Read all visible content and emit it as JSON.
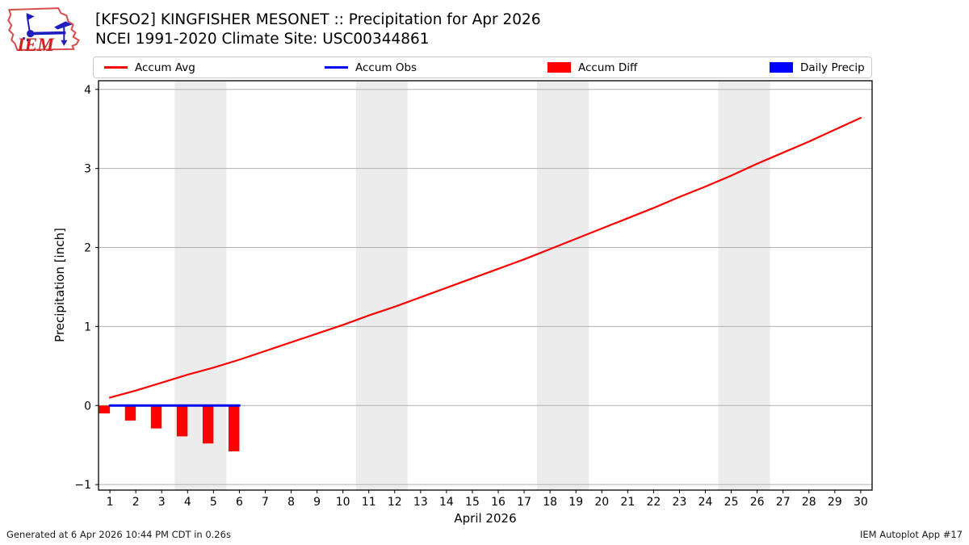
{
  "header": {
    "logo_text": "IEM",
    "title_line1": "[KFSO2] KINGFISHER MESONET :: Precipitation for Apr 2026",
    "title_line2": "NCEI 1991-2020 Climate Site: USC00344861"
  },
  "legend": {
    "items": [
      {
        "label": "Accum Avg",
        "swatch": "line",
        "color": "#ff0000"
      },
      {
        "label": "Accum Obs",
        "swatch": "line",
        "color": "#0000ff"
      },
      {
        "label": "Accum Diff",
        "swatch": "patch",
        "color": "#ff0000"
      },
      {
        "label": "Daily Precip",
        "swatch": "patch",
        "color": "#0000ff"
      }
    ]
  },
  "footer": {
    "left": "Generated at 6 Apr 2026 10:44 PM CDT in 0.26s",
    "right": "IEM Autoplot App #17"
  },
  "chart_data": {
    "type": "line",
    "title": "[KFSO2] KINGFISHER MESONET :: Precipitation for Apr 2026",
    "subtitle": "NCEI 1991-2020 Climate Site: USC00344861",
    "xlabel": "April 2026",
    "ylabel": "Precipitation [inch]",
    "xlim": [
      0.56,
      30.44
    ],
    "ylim": [
      -1.07,
      4.11
    ],
    "xticks": [
      1,
      2,
      3,
      4,
      5,
      6,
      7,
      8,
      9,
      10,
      11,
      12,
      13,
      14,
      15,
      16,
      17,
      18,
      19,
      20,
      21,
      22,
      23,
      24,
      25,
      26,
      27,
      28,
      29,
      30
    ],
    "yticks": [
      -1,
      0,
      1,
      2,
      3,
      4
    ],
    "grid": true,
    "legend_position": "top",
    "weekend_bands": [
      [
        3.5,
        5.5
      ],
      [
        10.5,
        12.5
      ],
      [
        17.5,
        19.5
      ],
      [
        24.5,
        26.5
      ]
    ],
    "colors": {
      "band": "#ececec",
      "grid": "#b0b0b0",
      "frame": "#000000",
      "accum_avg": "#ff0000",
      "accum_obs": "#0000ff",
      "accum_diff": "#ff0000",
      "daily_precip": "#0000ff"
    },
    "series": [
      {
        "name": "Accum Avg",
        "type": "line",
        "color": "#ff0000",
        "width": 2.2,
        "x": [
          1,
          2,
          3,
          4,
          5,
          6,
          7,
          8,
          9,
          10,
          11,
          12,
          13,
          14,
          15,
          16,
          17,
          18,
          19,
          20,
          21,
          22,
          23,
          24,
          25,
          26,
          27,
          28,
          29,
          30
        ],
        "values": [
          0.1,
          0.19,
          0.29,
          0.39,
          0.48,
          0.58,
          0.69,
          0.8,
          0.91,
          1.02,
          1.14,
          1.25,
          1.37,
          1.49,
          1.61,
          1.73,
          1.85,
          1.98,
          2.11,
          2.24,
          2.37,
          2.5,
          2.64,
          2.77,
          2.91,
          3.06,
          3.2,
          3.34,
          3.49,
          3.64
        ]
      },
      {
        "name": "Accum Obs",
        "type": "line",
        "color": "#0000ff",
        "width": 3,
        "x": [
          1,
          2,
          3,
          4,
          5,
          6
        ],
        "values": [
          0.0,
          0.0,
          0.0,
          0.0,
          0.0,
          0.0
        ]
      },
      {
        "name": "Accum Diff",
        "type": "bar",
        "color": "#ff0000",
        "x": [
          1,
          2,
          3,
          4,
          5,
          6
        ],
        "values": [
          -0.1,
          -0.19,
          -0.29,
          -0.39,
          -0.48,
          -0.58
        ]
      },
      {
        "name": "Daily Precip",
        "type": "bar",
        "color": "#0000ff",
        "x": [],
        "values": []
      }
    ]
  }
}
